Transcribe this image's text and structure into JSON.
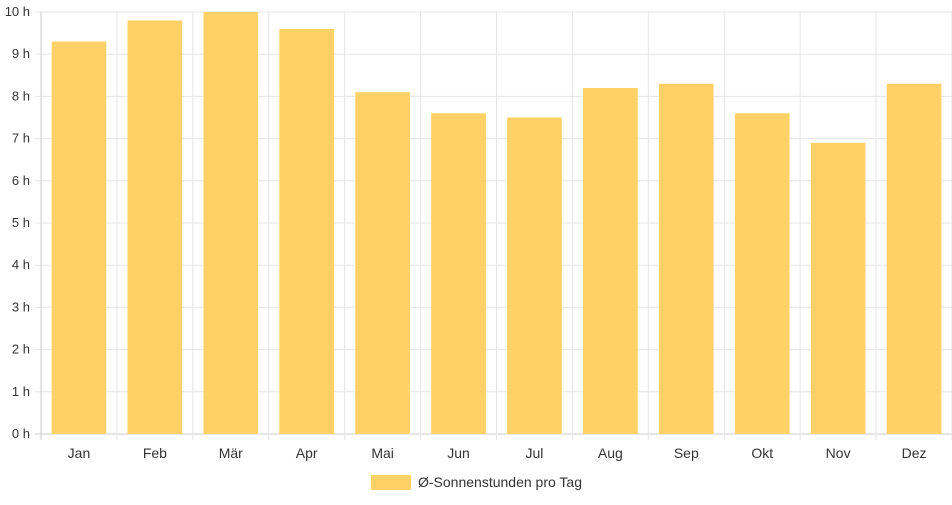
{
  "chart_data": {
    "type": "bar",
    "categories": [
      "Jan",
      "Feb",
      "Mär",
      "Apr",
      "Mai",
      "Jun",
      "Jul",
      "Aug",
      "Sep",
      "Okt",
      "Nov",
      "Dez"
    ],
    "series": [
      {
        "name": "Ø-Sonnenstunden pro Tag",
        "values": [
          9.3,
          9.8,
          10.0,
          9.6,
          8.1,
          7.6,
          7.5,
          8.2,
          8.3,
          7.6,
          6.9,
          8.3
        ]
      }
    ],
    "ylim": [
      0,
      10
    ],
    "yticks": [
      "0 h",
      "1 h",
      "2 h",
      "3 h",
      "4 h",
      "5 h",
      "6 h",
      "7 h",
      "8 h",
      "9 h",
      "10 h"
    ],
    "xlabel": "",
    "ylabel": "",
    "grid": true,
    "legend_position": "bottom",
    "colors": {
      "bar": "#FFD166",
      "grid": "#e5e5e5",
      "axis": "#cccccc",
      "text": "#333333"
    }
  }
}
